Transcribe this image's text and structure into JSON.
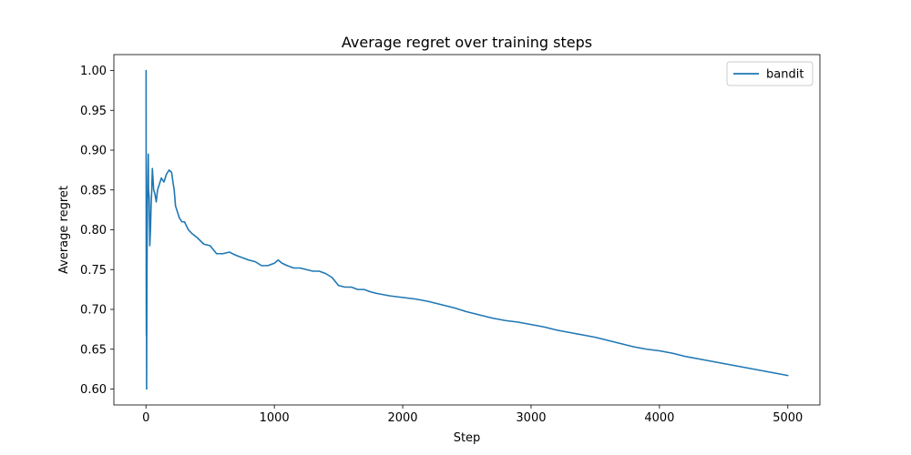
{
  "chart_data": {
    "type": "line",
    "title": "Average regret over training steps",
    "xlabel": "Step",
    "ylabel": "Average regret",
    "xlim": [
      -250,
      5250
    ],
    "ylim": [
      0.58,
      1.02
    ],
    "x_ticks": [
      0,
      1000,
      2000,
      3000,
      4000,
      5000
    ],
    "x_tick_labels": [
      "0",
      "1000",
      "2000",
      "3000",
      "4000",
      "5000"
    ],
    "y_ticks": [
      0.6,
      0.65,
      0.7,
      0.75,
      0.8,
      0.85,
      0.9,
      0.95,
      1.0
    ],
    "y_tick_labels": [
      "0.60",
      "0.65",
      "0.70",
      "0.75",
      "0.80",
      "0.85",
      "0.90",
      "0.95",
      "1.00"
    ],
    "grid": false,
    "legend_position": "top-right",
    "series": [
      {
        "name": "bandit",
        "color": "#1f77b4",
        "x": [
          1,
          2,
          3,
          4,
          5,
          6,
          8,
          10,
          12,
          15,
          18,
          20,
          25,
          30,
          35,
          40,
          45,
          50,
          60,
          70,
          80,
          90,
          100,
          120,
          140,
          160,
          180,
          200,
          210,
          220,
          230,
          240,
          260,
          280,
          300,
          330,
          360,
          400,
          450,
          500,
          550,
          600,
          650,
          700,
          750,
          800,
          850,
          900,
          950,
          1000,
          1030,
          1060,
          1100,
          1150,
          1200,
          1250,
          1300,
          1350,
          1400,
          1450,
          1500,
          1550,
          1600,
          1650,
          1700,
          1750,
          1800,
          1900,
          2000,
          2100,
          2200,
          2300,
          2400,
          2500,
          2600,
          2700,
          2800,
          2900,
          3000,
          3100,
          3200,
          3300,
          3400,
          3500,
          3600,
          3700,
          3800,
          3900,
          4000,
          4100,
          4200,
          4300,
          4400,
          4500,
          4600,
          4700,
          4800,
          4900,
          5000
        ],
        "values": [
          1.0,
          0.75,
          0.667,
          0.75,
          0.6,
          0.667,
          0.75,
          0.8,
          0.833,
          0.867,
          0.895,
          0.85,
          0.84,
          0.78,
          0.8,
          0.83,
          0.85,
          0.877,
          0.85,
          0.845,
          0.835,
          0.85,
          0.855,
          0.865,
          0.86,
          0.87,
          0.875,
          0.872,
          0.86,
          0.85,
          0.83,
          0.825,
          0.815,
          0.81,
          0.81,
          0.8,
          0.795,
          0.79,
          0.782,
          0.78,
          0.77,
          0.77,
          0.772,
          0.768,
          0.765,
          0.762,
          0.76,
          0.755,
          0.755,
          0.758,
          0.762,
          0.758,
          0.755,
          0.752,
          0.752,
          0.75,
          0.748,
          0.748,
          0.745,
          0.74,
          0.73,
          0.728,
          0.728,
          0.725,
          0.725,
          0.722,
          0.72,
          0.717,
          0.715,
          0.713,
          0.71,
          0.706,
          0.702,
          0.697,
          0.693,
          0.689,
          0.686,
          0.684,
          0.681,
          0.678,
          0.674,
          0.671,
          0.668,
          0.665,
          0.661,
          0.657,
          0.653,
          0.65,
          0.648,
          0.645,
          0.641,
          0.638,
          0.635,
          0.632,
          0.629,
          0.626,
          0.623,
          0.62,
          0.617
        ]
      }
    ]
  }
}
